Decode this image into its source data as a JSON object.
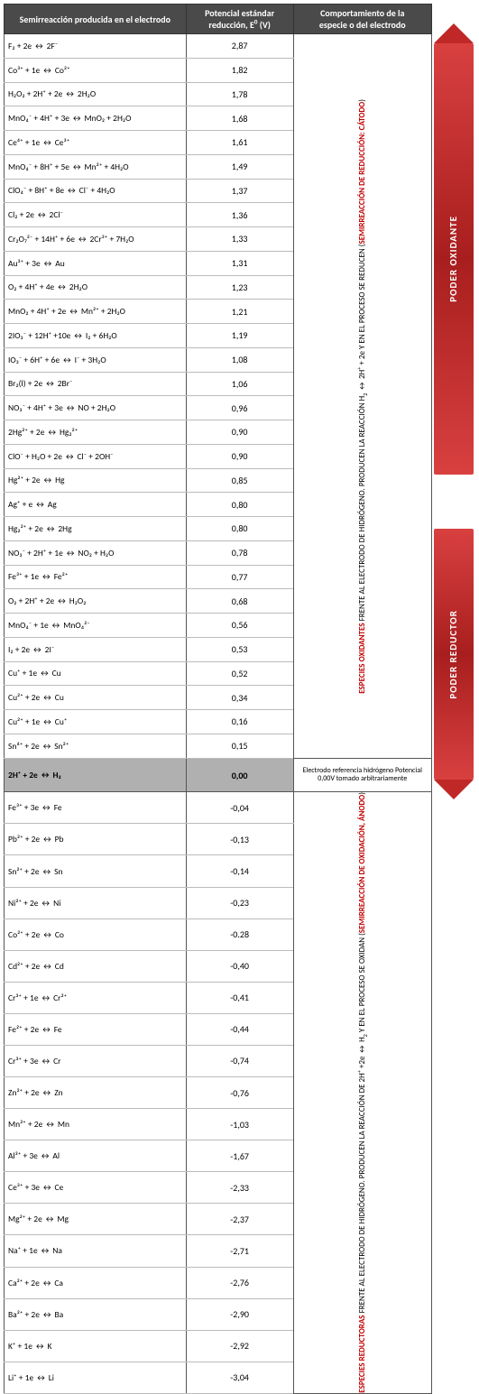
{
  "headers": {
    "col1": "Semirreacción producida en el electrodo",
    "col2_line1": "Potencial estándar",
    "col2_line2": "reducción, E",
    "col2_unit": "(V)",
    "col3_line1": "Comportamiento de la",
    "col3_line2": "especie o del electrodo"
  },
  "refcell": "Electrodo referencia hidrógeno Potencial 0,00V tomado arbitrariamente",
  "ox_text": {
    "a": "ESPECIES OXIDANTES",
    "b": " FRENTE AL ELECTRODO DE HIDRÓGENO. PRODUCEN LA REACCIÓN H",
    "c": " ↔ 2H",
    "d": " + 2e Y EN EL PROCESO SE REDUCEN (",
    "e": "SEMIRREACCIÓN DE REDUCCIÓN: CÁTODO",
    "f": ")"
  },
  "red_text": {
    "a": "ESPECIES REDUCTORAS",
    "b": " FRENTE AL ELECTRODO DE HIDRÓGENO. PRODUCEN LA REACCIÓN DE 2H",
    "c": " +2e ↔ H",
    "d": " Y EN EL PROCESO SE OXIDAN (",
    "e": "SEMIRREACCIÓN DE OXIDACIÓN, ÁNODO",
    "f": ")"
  },
  "arrow_top": "PODER OXIDANTE",
  "arrow_bot": "PODER REDUCTOR",
  "top_rows": [
    {
      "rx": "F₂ + 2e ↔ 2F⁻",
      "v": "2,87"
    },
    {
      "rx": "Co³⁺ + 1e ↔ Co²⁺",
      "v": "1,82"
    },
    {
      "rx": "H₂O₂ + 2H⁺ + 2e ↔ 2H₂O",
      "v": "1,78"
    },
    {
      "rx": "MnO₄⁻ + 4H⁺ + 3e ↔ MnO₂ + 2H₂O",
      "v": "1,68"
    },
    {
      "rx": "Ce⁴⁺ + 1e ↔ Ce³⁺",
      "v": "1,61"
    },
    {
      "rx": "MnO₄⁻ + 8H⁺ + 5e ↔ Mn²⁺ + 4H₂O",
      "v": "1,49"
    },
    {
      "rx": "ClO₄⁻ + 8H⁺ + 8e ↔ Cl⁻ + 4H₂O",
      "v": "1,37"
    },
    {
      "rx": "Cl₂ + 2e ↔ 2Cl⁻",
      "v": "1,36"
    },
    {
      "rx": "Cr₂O₇²⁻ + 14H⁺ + 6e ↔ 2Cr³⁺ + 7H₂O",
      "v": "1,33"
    },
    {
      "rx": "Au³⁺ + 3e ↔ Au",
      "v": "1,31"
    },
    {
      "rx": "O₂ + 4H⁺ + 4e ↔ 2H₂O",
      "v": "1,23"
    },
    {
      "rx": "MnO₂ + 4H⁺ + 2e ↔ Mn²⁺ + 2H₂O",
      "v": "1,21"
    },
    {
      "rx": "2IO₃⁻ + 12H⁺ +10e ↔ I₂ + 6H₂O",
      "v": "1,19"
    },
    {
      "rx": "IO₃⁻ + 6H⁺ + 6e ↔ I⁻ + 3H₂O",
      "v": "1,08"
    },
    {
      "rx": "Br₂(l) + 2e ↔ 2Br⁻",
      "v": "1,06"
    },
    {
      "rx": "NO₃⁻ + 4H⁺ + 3e ↔ NO + 2H₂O",
      "v": "0,96"
    },
    {
      "rx": "2Hg²⁺ + 2e ↔ Hg₂²⁺",
      "v": "0,90"
    },
    {
      "rx": "ClO⁻ + H₂O + 2e ↔ Cl⁻ + 2OH⁻",
      "v": "0,90"
    },
    {
      "rx": "Hg²⁺ + 2e ↔ Hg",
      "v": "0,85"
    },
    {
      "rx": "Ag⁺ + e ↔ Ag",
      "v": "0,80"
    },
    {
      "rx": "Hg₂²⁺ + 2e ↔ 2Hg",
      "v": "0,80"
    },
    {
      "rx": "NO₃⁻ + 2H⁺ + 1e ↔ NO₂ + H₂O",
      "v": "0,78"
    },
    {
      "rx": "Fe³⁺ + 1e ↔ Fe²⁺",
      "v": "0,77"
    },
    {
      "rx": "O₂ + 2H⁺ + 2e ↔ H₂O₂",
      "v": "0,68"
    },
    {
      "rx": "MnO₄⁻ + 1e ↔ MnO₄²⁻",
      "v": "0,56"
    },
    {
      "rx": "I₂ + 2e ↔ 2I⁻",
      "v": "0,53"
    },
    {
      "rx": "Cu⁺ + 1e ↔ Cu",
      "v": "0,52"
    },
    {
      "rx": "Cu²⁺ + 2e ↔ Cu",
      "v": "0,34"
    },
    {
      "rx": "Cu²⁺ + 1e ↔ Cu⁺",
      "v": "0,16"
    },
    {
      "rx": "Sn⁴⁺ + 2e ↔ Sn²⁺",
      "v": "0,15"
    }
  ],
  "h_row": {
    "rx": "2H⁺ + 2e ↔ H₂",
    "v": "0,00"
  },
  "bot_rows": [
    {
      "rx": "Fe³⁺ + 3e ↔ Fe",
      "v": "-0,04"
    },
    {
      "rx": "Pb²⁺ + 2e ↔ Pb",
      "v": "-0,13"
    },
    {
      "rx": "Sn²⁺ + 2e ↔ Sn",
      "v": "-0,14"
    },
    {
      "rx": "Ni²⁺ + 2e ↔ Ni",
      "v": "-0,23"
    },
    {
      "rx": "Co²⁺ + 2e ↔ Co",
      "v": "-0.28"
    },
    {
      "rx": "Cd²⁺ + 2e ↔ Cd",
      "v": "-0,40"
    },
    {
      "rx": "Cr³⁺ + 1e ↔ Cr²⁺",
      "v": "-0,41"
    },
    {
      "rx": "Fe²⁺ + 2e ↔ Fe",
      "v": "-0,44"
    },
    {
      "rx": "Cr³⁺ + 3e ↔ Cr",
      "v": "-0,74"
    },
    {
      "rx": "Zn²⁺ + 2e ↔ Zn",
      "v": "-0,76"
    },
    {
      "rx": "Mn²⁺ + 2e ↔ Mn",
      "v": "-1,03"
    },
    {
      "rx": "Al³⁺ + 3e ↔ Al",
      "v": "-1,67"
    },
    {
      "rx": "Ce³⁺ + 3e ↔ Ce",
      "v": "-2,33"
    },
    {
      "rx": "Mg²⁺ + 2e ↔ Mg",
      "v": "-2,37"
    },
    {
      "rx": "Na⁺ + 1e ↔ Na",
      "v": "-2,71"
    },
    {
      "rx": "Ca²⁺ + 2e ↔ Ca",
      "v": "-2,76"
    },
    {
      "rx": "Ba²⁺ + 2e ↔ Ba",
      "v": "-2,90"
    },
    {
      "rx": "K⁺ + 1e ↔ K",
      "v": "-2,92"
    },
    {
      "rx": "Li⁺ + 1e ↔ Li",
      "v": "-3,04"
    }
  ]
}
